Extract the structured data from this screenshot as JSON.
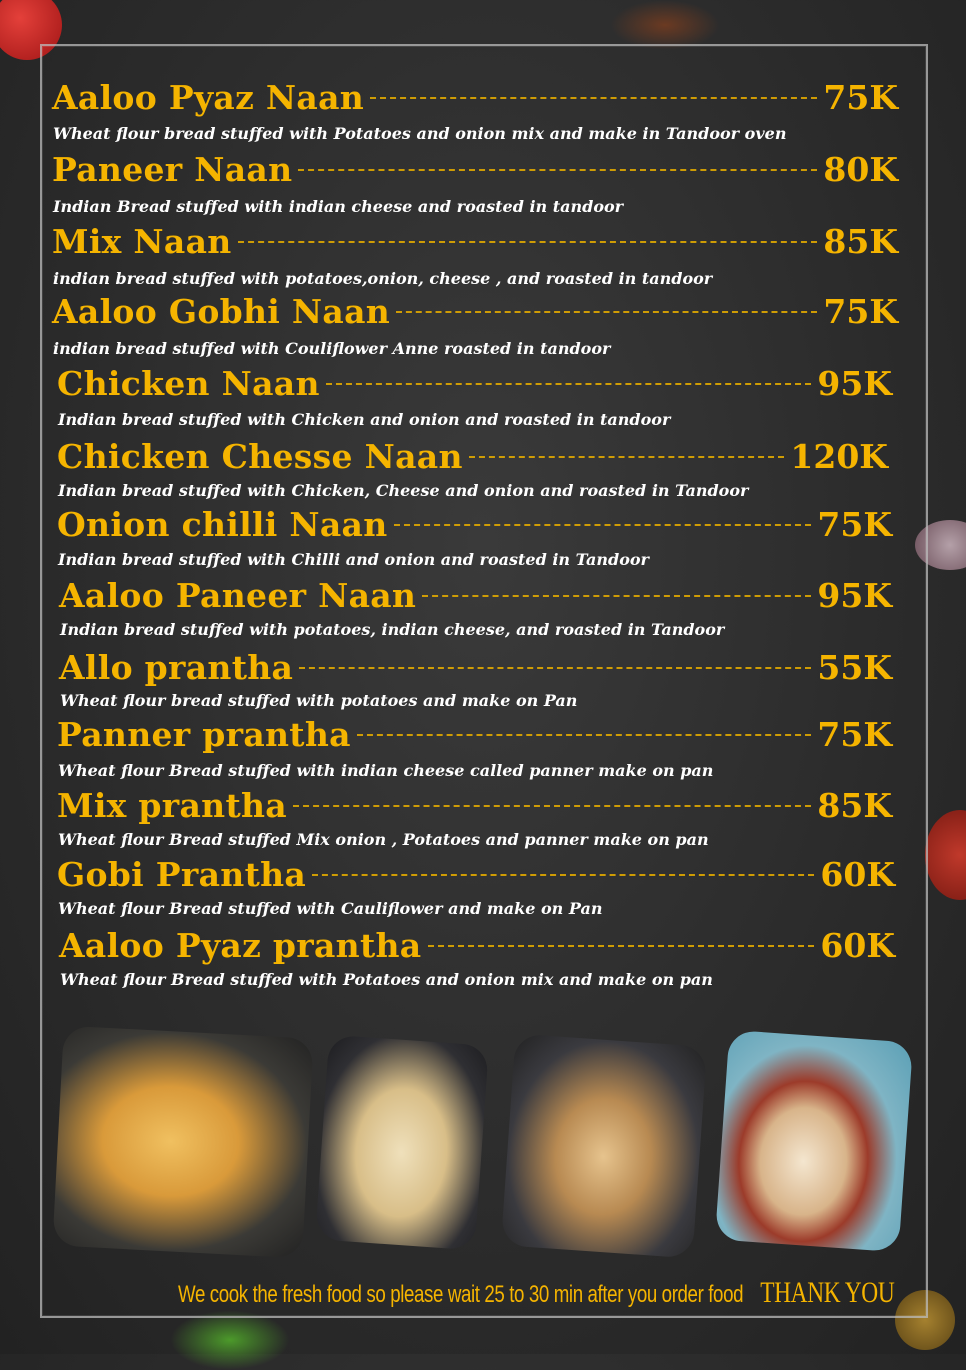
{
  "menu": {
    "items": [
      {
        "name": "Aaloo Pyaz Naan",
        "price": "75K",
        "description": "Wheat flour bread stuffed with Potatoes and onion mix and make in Tandoor oven"
      },
      {
        "name": "Paneer Naan",
        "price": "80K",
        "description": "Indian Bread stuffed with indian cheese and roasted in tandoor"
      },
      {
        "name": "Mix Naan",
        "price": "85K",
        "description": "indian bread stuffed with potatoes,onion, cheese , and roasted in tandoor"
      },
      {
        "name": "Aaloo Gobhi Naan",
        "price": "75K",
        "description": "indian bread stuffed with Couliflower Anne roasted in tandoor"
      },
      {
        "name": "Chicken Naan",
        "price": "95K",
        "description": "Indian bread stuffed with Chicken and onion and roasted in tandoor"
      },
      {
        "name": "Chicken Chesse Naan",
        "price": "120K",
        "description": "Indian bread stuffed with Chicken, Cheese and onion and roasted in Tandoor"
      },
      {
        "name": "Onion chilli Naan",
        "price": "75K",
        "description": "Indian bread stuffed with Chilli and onion and roasted in Tandoor"
      },
      {
        "name": "Aaloo Paneer Naan",
        "price": "95K",
        "description": "Indian bread stuffed with potatoes, indian cheese, and roasted in Tandoor"
      },
      {
        "name": "Allo prantha",
        "price": "55K",
        "description": "Wheat flour bread stuffed with potatoes and make on Pan"
      },
      {
        "name": "Panner prantha",
        "price": "75K",
        "description": "Wheat flour Bread stuffed with indian cheese called panner make on pan"
      },
      {
        "name": "Mix prantha",
        "price": "85K",
        "description": "Wheat flour Bread stuffed Mix onion , Potatoes and panner make on pan"
      },
      {
        "name": "Gobi Prantha",
        "price": "60K",
        "description": "Wheat flour Bread stuffed with Cauliflower and make on Pan"
      },
      {
        "name": "Aaloo Pyaz prantha",
        "price": "60K",
        "description": "Wheat flour Bread stuffed with Potatoes and onion mix and make on pan"
      }
    ]
  },
  "footer": {
    "note": "We cook the fresh food so please wait 25 to 30 min after you order food",
    "thanks": "THANK YOU"
  },
  "colors": {
    "accent": "#f5b400",
    "background": "#2e2e2e",
    "description": "#ffffff"
  }
}
